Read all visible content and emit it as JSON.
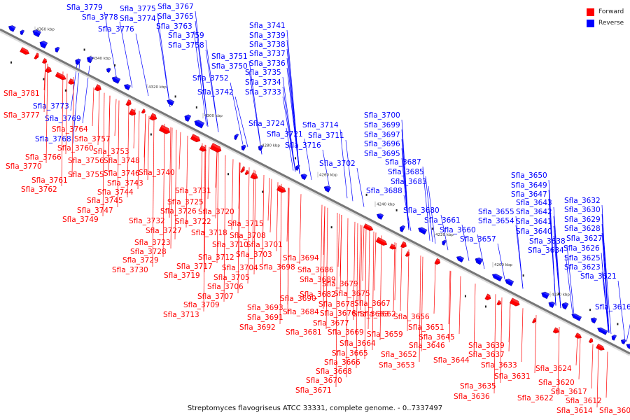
{
  "caption": "Streptomyces flavogriseus ATCC 33331, complete genome. - 0..7337497",
  "legend": [
    {
      "label": "Forward",
      "color": "#ff0000"
    },
    {
      "label": "Reverse",
      "color": "#0000ff"
    }
  ],
  "colors": {
    "forward": "#ff0000",
    "reverse": "#0000ff",
    "axis": "#888888"
  },
  "ticks": [
    "4360 kbp",
    "4340 kbp",
    "4320 kbp",
    "4300 kbp",
    "4280 kbp",
    "4260 kbp",
    "4240 kbp",
    "4220 kbp",
    "4200 kbp",
    "4180 kbp"
  ],
  "reverse_labels": [
    "Sfla_3779",
    "Sfla_3775",
    "Sfla_3767",
    "Sfla_3778",
    "Sfla_3774",
    "Sfla_3765",
    "Sfla_3776",
    "Sfla_3763",
    "Sfla_3759",
    "Sfla_3758",
    "Sfla_3741",
    "Sfla_3739",
    "Sfla_3738",
    "Sfla_3737",
    "Sfla_3751",
    "Sfla_3736",
    "Sfla_3750",
    "Sfla_3735",
    "Sfla_3752",
    "Sfla_3734",
    "Sfla_3742",
    "Sfla_3733",
    "Sfla_3773",
    "Sfla_3769",
    "Sfla_3768",
    "Sfla_3700",
    "Sfla_3699",
    "Sfla_3724",
    "Sfla_3714",
    "Sfla_3697",
    "Sfla_3721",
    "Sfla_3711",
    "Sfla_3696",
    "Sfla_3716",
    "Sfla_3695",
    "Sfla_3702",
    "Sfla_3687",
    "Sfla_3685",
    "Sfla_3683",
    "Sfla_3688",
    "Sfla_3680",
    "Sfla_3661",
    "Sfla_3660",
    "Sfla_3657",
    "Sfla_3650",
    "Sfla_3649",
    "Sfla_3647",
    "Sfla_3643",
    "Sfla_3655",
    "Sfla_3642",
    "Sfla_3654",
    "Sfla_3641",
    "Sfla_3640",
    "Sfla_3638",
    "Sfla_3634",
    "Sfla_3632",
    "Sfla_3630",
    "Sfla_3629",
    "Sfla_3628",
    "Sfla_3627",
    "Sfla_3626",
    "Sfla_3625",
    "Sfla_3623",
    "Sfla_3621",
    "Sfla_3616"
  ],
  "forward_labels": [
    "Sfla_3781",
    "Sfla_3777",
    "Sfla_3764",
    "Sfla_3757",
    "Sfla_3760",
    "Sfla_3753",
    "Sfla_3766",
    "Sfla_3756",
    "Sfla_3748",
    "Sfla_3770",
    "Sfla_3755",
    "Sfla_3746",
    "Sfla_3740",
    "Sfla_3761",
    "Sfla_3743",
    "Sfla_3762",
    "Sfla_3744",
    "Sfla_3731",
    "Sfla_3745",
    "Sfla_3725",
    "Sfla_3747",
    "Sfla_3726",
    "Sfla_3720",
    "Sfla_3749",
    "Sfla_3732",
    "Sfla_3722",
    "Sfla_3715",
    "Sfla_3727",
    "Sfla_3718",
    "Sfla_3708",
    "Sfla_3723",
    "Sfla_3710",
    "Sfla_3703",
    "Sfla_3701",
    "Sfla_3728",
    "Sfla_3712",
    "Sfla_3694",
    "Sfla_3729",
    "Sfla_3717",
    "Sfla_3704",
    "Sfla_3698",
    "Sfla_3730",
    "Sfla_3719",
    "Sfla_3705",
    "Sfla_3686",
    "Sfla_3706",
    "Sfla_3689",
    "Sfla_3707",
    "Sfla_3690",
    "Sfla_3682",
    "Sfla_3679",
    "Sfla_3709",
    "Sfla_3693",
    "Sfla_3678",
    "Sfla_3675",
    "Sfla_3713",
    "Sfla_3684",
    "Sfla_3676",
    "Sfla_3667",
    "Sfla_3691",
    "Sfla_3663",
    "Sfla_3662",
    "Sfla_3656",
    "Sfla_3692",
    "Sfla_3681",
    "Sfla_3677",
    "Sfla_3669",
    "Sfla_3651",
    "Sfla_3659",
    "Sfla_3645",
    "Sfla_3664",
    "Sfla_3646",
    "Sfla_3665",
    "Sfla_3652",
    "Sfla_3639",
    "Sfla_3666",
    "Sfla_3653",
    "Sfla_3644",
    "Sfla_3637",
    "Sfla_3668",
    "Sfla_3633",
    "Sfla_3624",
    "Sfla_3670",
    "Sfla_3631",
    "Sfla_3671",
    "Sfla_3635",
    "Sfla_3620",
    "Sfla_3636",
    "Sfla_3622",
    "Sfla_3617",
    "Sfla_3612",
    "Sfla_3614",
    "Sfla_3603"
  ]
}
